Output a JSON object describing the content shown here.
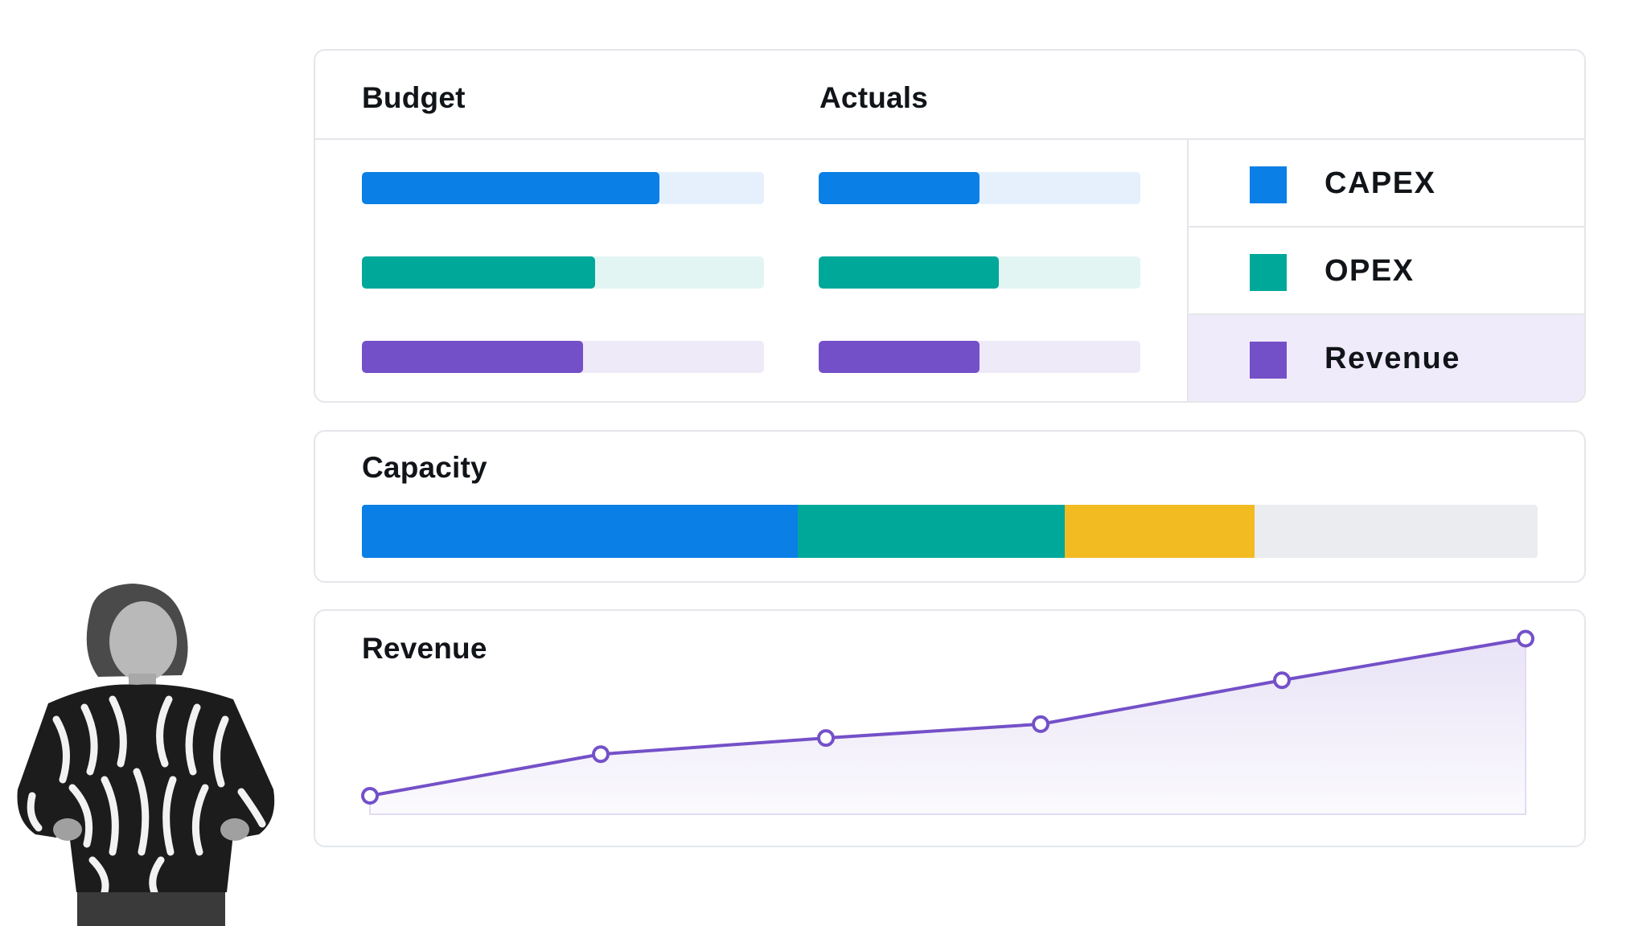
{
  "budget_actuals": {
    "budget_header": "Budget",
    "actuals_header": "Actuals"
  },
  "legend": [
    {
      "label": "CAPEX",
      "color": "#0a7fe6",
      "track": "#e5f0fc",
      "active": false
    },
    {
      "label": "OPEX",
      "color": "#00a89a",
      "track": "#e3f5f3",
      "active": false
    },
    {
      "label": "Revenue",
      "color": "#7450c8",
      "track": "#efeaf8",
      "active": true
    }
  ],
  "capacity": {
    "title": "Capacity",
    "track_color": "#ebecf0"
  },
  "revenue": {
    "title": "Revenue",
    "line_color": "#7450c8"
  },
  "chart_data": [
    {
      "type": "bar",
      "orientation": "horizontal",
      "categories": [
        "CAPEX",
        "OPEX",
        "Revenue"
      ],
      "series": [
        {
          "name": "Budget",
          "values": [
            0.74,
            0.58,
            0.55
          ]
        },
        {
          "name": "Actuals",
          "values": [
            0.5,
            0.56,
            0.5
          ]
        }
      ],
      "ylim": [
        0,
        1
      ],
      "legend": "right"
    },
    {
      "type": "bar",
      "stacked": true,
      "title": "Capacity",
      "segments": [
        {
          "value": 0.371,
          "color": "#0a7fe6"
        },
        {
          "value": 0.227,
          "color": "#00a89a"
        },
        {
          "value": 0.161,
          "color": "#f2bb22"
        }
      ],
      "remaining": 0.241,
      "ylim": [
        0,
        1
      ]
    },
    {
      "type": "area",
      "title": "Revenue",
      "x": [
        0,
        1,
        2,
        3,
        4,
        5
      ],
      "values": [
        4,
        13,
        16.5,
        19.5,
        29,
        38
      ],
      "ylim": [
        0,
        44
      ],
      "grid": false
    }
  ]
}
